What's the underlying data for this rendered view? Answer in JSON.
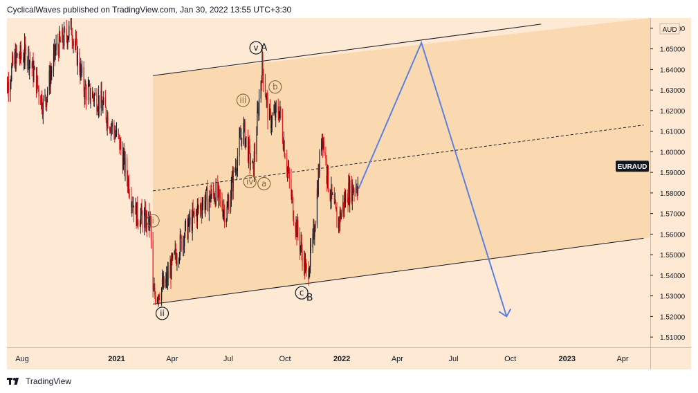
{
  "header": {
    "title": "CyclicalWaves published on TradingView.com, Jan 30, 2022 13:55 UTC+3:30"
  },
  "footer": {
    "brand": "TradingView",
    "logo_icon": "tradingview-logo-icon"
  },
  "colors": {
    "background": "#fde9d4",
    "channel_fill": "#fbd9b0",
    "candle_up": "#131722",
    "candle_down": "#e0161a",
    "projection": "#5b7fe0",
    "channel_line": "#131722",
    "symbol_badge_bg": "#131722",
    "label_stroke": "#8a6a3a"
  },
  "chart_data": {
    "type": "candlestick",
    "symbol": "EURAUD",
    "currency": "AUD",
    "ylim": [
      1.505,
      1.665
    ],
    "y_ticks": [
      "1.66000",
      "1.65000",
      "1.64000",
      "1.63000",
      "1.62000",
      "1.61000",
      "1.60000",
      "1.59000",
      "1.58000",
      "1.57000",
      "1.56000",
      "1.55000",
      "1.54000",
      "1.53000",
      "1.52000",
      "1.51000"
    ],
    "x_ticks": [
      {
        "label": "Aug",
        "date": "2020-08-01",
        "bold": false
      },
      {
        "label": "2021",
        "date": "2021-01-01",
        "bold": true
      },
      {
        "label": "Apr",
        "date": "2021-04-01",
        "bold": false
      },
      {
        "label": "Jul",
        "date": "2021-07-01",
        "bold": false
      },
      {
        "label": "Oct",
        "date": "2021-10-01",
        "bold": false
      },
      {
        "label": "2022",
        "date": "2022-01-01",
        "bold": true
      },
      {
        "label": "Apr",
        "date": "2022-04-01",
        "bold": false
      },
      {
        "label": "Jul",
        "date": "2022-07-01",
        "bold": false
      },
      {
        "label": "Oct",
        "date": "2022-10-01",
        "bold": false
      },
      {
        "label": "2023",
        "date": "2023-01-01",
        "bold": true
      },
      {
        "label": "Apr",
        "date": "2023-04-01",
        "bold": false
      }
    ],
    "last_price_label": "EURAUD",
    "price_path": [
      {
        "date": "2020-07-01",
        "price": 1.625
      },
      {
        "date": "2020-07-20",
        "price": 1.645
      },
      {
        "date": "2020-08-10",
        "price": 1.648
      },
      {
        "date": "2020-09-05",
        "price": 1.622
      },
      {
        "date": "2020-09-25",
        "price": 1.65
      },
      {
        "date": "2020-10-20",
        "price": 1.66
      },
      {
        "date": "2020-11-10",
        "price": 1.63
      },
      {
        "date": "2020-12-05",
        "price": 1.625
      },
      {
        "date": "2021-01-05",
        "price": 1.605
      },
      {
        "date": "2021-02-01",
        "price": 1.57
      },
      {
        "date": "2021-02-25",
        "price": 1.565
      },
      {
        "date": "2021-03-01",
        "price": 1.53
      },
      {
        "date": "2021-03-20",
        "price": 1.535
      },
      {
        "date": "2021-04-20",
        "price": 1.56
      },
      {
        "date": "2021-05-20",
        "price": 1.575
      },
      {
        "date": "2021-06-10",
        "price": 1.58
      },
      {
        "date": "2021-06-28",
        "price": 1.57
      },
      {
        "date": "2021-07-25",
        "price": 1.612
      },
      {
        "date": "2021-08-10",
        "price": 1.59
      },
      {
        "date": "2021-08-25",
        "price": 1.643
      },
      {
        "date": "2021-09-05",
        "price": 1.615
      },
      {
        "date": "2021-09-22",
        "price": 1.62
      },
      {
        "date": "2021-10-15",
        "price": 1.57
      },
      {
        "date": "2021-11-05",
        "price": 1.54
      },
      {
        "date": "2021-11-15",
        "price": 1.555
      },
      {
        "date": "2021-11-30",
        "price": 1.61
      },
      {
        "date": "2021-12-10",
        "price": 1.585
      },
      {
        "date": "2021-12-25",
        "price": 1.565
      },
      {
        "date": "2022-01-10",
        "price": 1.58
      },
      {
        "date": "2022-01-28",
        "price": 1.585
      }
    ],
    "projection": [
      {
        "date": "2022-01-28",
        "price": 1.582
      },
      {
        "date": "2022-05-10",
        "price": 1.653
      },
      {
        "date": "2022-09-25",
        "price": 1.52
      }
    ],
    "channel": {
      "upper": [
        {
          "date": "2021-03-01",
          "price": 1.637
        },
        {
          "date": "2022-11-20",
          "price": 1.662
        }
      ],
      "lower": [
        {
          "date": "2021-03-01",
          "price": 1.526
        },
        {
          "date": "2023-05-05",
          "price": 1.558
        }
      ],
      "mid": [
        {
          "date": "2021-03-01",
          "price": 1.581
        },
        {
          "date": "2023-05-05",
          "price": 1.613
        }
      ]
    },
    "wave_labels": [
      {
        "text": "i",
        "date": "2021-03-01",
        "price": 1.5665,
        "circle": true,
        "dark": false
      },
      {
        "text": "ii",
        "date": "2021-03-16",
        "price": 1.5215,
        "circle": true,
        "dark": true
      },
      {
        "text": "iii",
        "date": "2021-07-25",
        "price": 1.625,
        "circle": true,
        "dark": false
      },
      {
        "text": "iv",
        "date": "2021-08-05",
        "price": 1.5855,
        "circle": true,
        "dark": false
      },
      {
        "text": "a",
        "date": "2021-08-28",
        "price": 1.5845,
        "circle": true,
        "dark": false
      },
      {
        "text": "b",
        "date": "2021-09-15",
        "price": 1.6315,
        "circle": true,
        "dark": false
      },
      {
        "text": "v",
        "date": "2021-08-15",
        "price": 1.6505,
        "circle": true,
        "dark": true
      },
      {
        "text": "A",
        "date": "2021-08-28",
        "price": 1.6505,
        "circle": false,
        "dark": true
      },
      {
        "text": "c",
        "date": "2021-10-28",
        "price": 1.5315,
        "circle": true,
        "dark": true
      },
      {
        "text": "B",
        "date": "2021-11-10",
        "price": 1.529,
        "circle": false,
        "dark": true
      }
    ]
  }
}
